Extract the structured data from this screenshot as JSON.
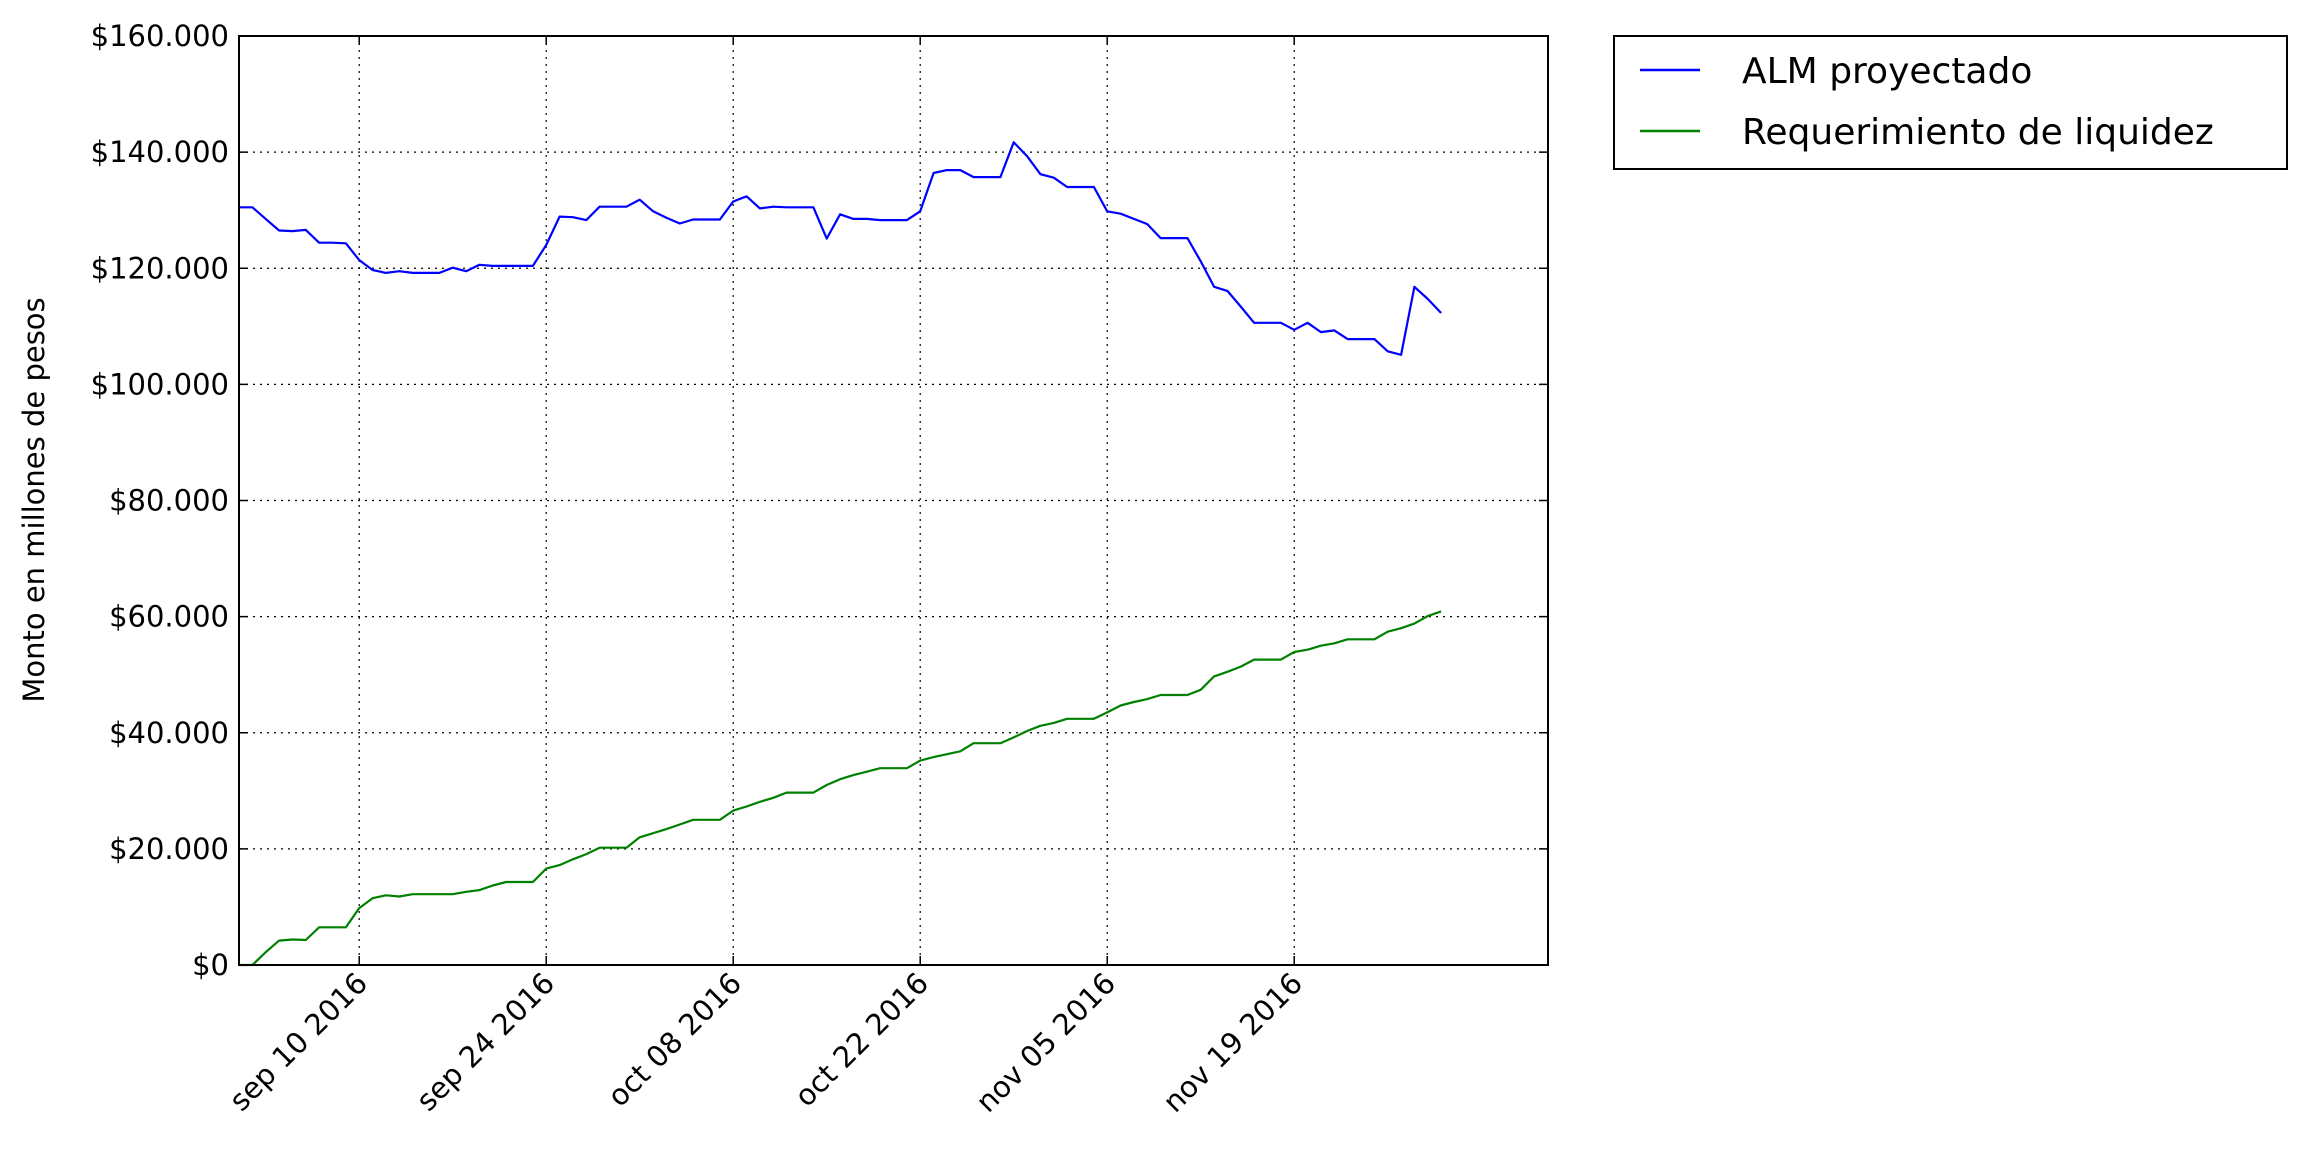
{
  "chart_data": {
    "type": "line",
    "title": "",
    "xlabel": "",
    "ylabel": "Monto en millones de pesos",
    "x_axis": {
      "kind": "date",
      "range": [
        "2016-09-01",
        "2016-12-08"
      ],
      "ticks": [
        {
          "date": "2016-09-10",
          "label": "sep 10 2016"
        },
        {
          "date": "2016-09-24",
          "label": "sep 24 2016"
        },
        {
          "date": "2016-10-08",
          "label": "oct 08 2016"
        },
        {
          "date": "2016-10-22",
          "label": "oct 22 2016"
        },
        {
          "date": "2016-11-05",
          "label": "nov 05 2016"
        },
        {
          "date": "2016-11-19",
          "label": "nov 19 2016"
        }
      ]
    },
    "y_axis": {
      "range": [
        0,
        160000
      ],
      "ticks": [
        {
          "value": 0,
          "label": "$0"
        },
        {
          "value": 20000,
          "label": "$20.000"
        },
        {
          "value": 40000,
          "label": "$40.000"
        },
        {
          "value": 60000,
          "label": "$60.000"
        },
        {
          "value": 80000,
          "label": "$80.000"
        },
        {
          "value": 100000,
          "label": "$100.000"
        },
        {
          "value": 120000,
          "label": "$120.000"
        },
        {
          "value": 140000,
          "label": "$140.000"
        },
        {
          "value": 160000,
          "label": "$160.000"
        }
      ]
    },
    "grid": true,
    "legend_position": "outside-right",
    "series": [
      {
        "name": "ALM proyectado",
        "color": "#0000ff",
        "points": [
          [
            "2016-09-01",
            130500
          ],
          [
            "2016-09-02",
            130500
          ],
          [
            "2016-09-03",
            128500
          ],
          [
            "2016-09-04",
            126500
          ],
          [
            "2016-09-05",
            126400
          ],
          [
            "2016-09-06",
            126600
          ],
          [
            "2016-09-07",
            124400
          ],
          [
            "2016-09-08",
            124400
          ],
          [
            "2016-09-09",
            124300
          ],
          [
            "2016-09-10",
            121400
          ],
          [
            "2016-09-11",
            119700
          ],
          [
            "2016-09-12",
            119200
          ],
          [
            "2016-09-13",
            119500
          ],
          [
            "2016-09-14",
            119200
          ],
          [
            "2016-09-15",
            119200
          ],
          [
            "2016-09-16",
            119200
          ],
          [
            "2016-09-17",
            120100
          ],
          [
            "2016-09-18",
            119500
          ],
          [
            "2016-09-19",
            120600
          ],
          [
            "2016-09-20",
            120400
          ],
          [
            "2016-09-21",
            120400
          ],
          [
            "2016-09-22",
            120400
          ],
          [
            "2016-09-23",
            120400
          ],
          [
            "2016-09-24",
            124000
          ],
          [
            "2016-09-25",
            128900
          ],
          [
            "2016-09-26",
            128800
          ],
          [
            "2016-09-27",
            128300
          ],
          [
            "2016-09-28",
            130600
          ],
          [
            "2016-09-29",
            130600
          ],
          [
            "2016-09-30",
            130600
          ],
          [
            "2016-10-01",
            131800
          ],
          [
            "2016-10-02",
            129800
          ],
          [
            "2016-10-03",
            128700
          ],
          [
            "2016-10-04",
            127700
          ],
          [
            "2016-10-05",
            128400
          ],
          [
            "2016-10-06",
            128400
          ],
          [
            "2016-10-07",
            128400
          ],
          [
            "2016-10-08",
            131500
          ],
          [
            "2016-10-09",
            132400
          ],
          [
            "2016-10-10",
            130300
          ],
          [
            "2016-10-11",
            130600
          ],
          [
            "2016-10-12",
            130500
          ],
          [
            "2016-10-13",
            130500
          ],
          [
            "2016-10-14",
            130500
          ],
          [
            "2016-10-15",
            125100
          ],
          [
            "2016-10-16",
            129300
          ],
          [
            "2016-10-17",
            128500
          ],
          [
            "2016-10-18",
            128500
          ],
          [
            "2016-10-19",
            128300
          ],
          [
            "2016-10-20",
            128300
          ],
          [
            "2016-10-21",
            128300
          ],
          [
            "2016-10-22",
            129800
          ],
          [
            "2016-10-23",
            136400
          ],
          [
            "2016-10-24",
            136900
          ],
          [
            "2016-10-25",
            136900
          ],
          [
            "2016-10-26",
            135700
          ],
          [
            "2016-10-27",
            135700
          ],
          [
            "2016-10-28",
            135700
          ],
          [
            "2016-10-29",
            141700
          ],
          [
            "2016-10-30",
            139300
          ],
          [
            "2016-10-31",
            136200
          ],
          [
            "2016-11-01",
            135600
          ],
          [
            "2016-11-02",
            134000
          ],
          [
            "2016-11-03",
            134000
          ],
          [
            "2016-11-04",
            134000
          ],
          [
            "2016-11-05",
            129800
          ],
          [
            "2016-11-06",
            129400
          ],
          [
            "2016-11-07",
            128500
          ],
          [
            "2016-11-08",
            127600
          ],
          [
            "2016-11-09",
            125200
          ],
          [
            "2016-11-10",
            125200
          ],
          [
            "2016-11-11",
            125200
          ],
          [
            "2016-11-12",
            121200
          ],
          [
            "2016-11-13",
            116800
          ],
          [
            "2016-11-14",
            116100
          ],
          [
            "2016-11-15",
            113400
          ],
          [
            "2016-11-16",
            110600
          ],
          [
            "2016-11-17",
            110600
          ],
          [
            "2016-11-18",
            110600
          ],
          [
            "2016-11-19",
            109400
          ],
          [
            "2016-11-20",
            110600
          ],
          [
            "2016-11-21",
            109000
          ],
          [
            "2016-11-22",
            109300
          ],
          [
            "2016-11-23",
            107800
          ],
          [
            "2016-11-24",
            107800
          ],
          [
            "2016-11-25",
            107800
          ],
          [
            "2016-11-26",
            105700
          ],
          [
            "2016-11-27",
            105100
          ],
          [
            "2016-11-28",
            116800
          ],
          [
            "2016-11-29",
            114700
          ],
          [
            "2016-11-30",
            112300
          ]
        ]
      },
      {
        "name": "Requerimiento de liquidez",
        "color": "#008000",
        "points": [
          [
            "2016-09-01",
            0
          ],
          [
            "2016-09-02",
            0
          ],
          [
            "2016-09-03",
            2200
          ],
          [
            "2016-09-04",
            4200
          ],
          [
            "2016-09-05",
            4400
          ],
          [
            "2016-09-06",
            4300
          ],
          [
            "2016-09-07",
            6500
          ],
          [
            "2016-09-08",
            6500
          ],
          [
            "2016-09-09",
            6500
          ],
          [
            "2016-09-10",
            9800
          ],
          [
            "2016-09-11",
            11500
          ],
          [
            "2016-09-12",
            12000
          ],
          [
            "2016-09-13",
            11800
          ],
          [
            "2016-09-14",
            12200
          ],
          [
            "2016-09-15",
            12200
          ],
          [
            "2016-09-16",
            12200
          ],
          [
            "2016-09-17",
            12200
          ],
          [
            "2016-09-18",
            12600
          ],
          [
            "2016-09-19",
            12900
          ],
          [
            "2016-09-20",
            13700
          ],
          [
            "2016-09-21",
            14300
          ],
          [
            "2016-09-22",
            14300
          ],
          [
            "2016-09-23",
            14300
          ],
          [
            "2016-09-24",
            16600
          ],
          [
            "2016-09-25",
            17200
          ],
          [
            "2016-09-26",
            18200
          ],
          [
            "2016-09-27",
            19100
          ],
          [
            "2016-09-28",
            20200
          ],
          [
            "2016-09-29",
            20200
          ],
          [
            "2016-09-30",
            20200
          ],
          [
            "2016-10-01",
            22000
          ],
          [
            "2016-10-02",
            22700
          ],
          [
            "2016-10-03",
            23400
          ],
          [
            "2016-10-04",
            24200
          ],
          [
            "2016-10-05",
            25000
          ],
          [
            "2016-10-06",
            25000
          ],
          [
            "2016-10-07",
            25000
          ],
          [
            "2016-10-08",
            26600
          ],
          [
            "2016-10-09",
            27300
          ],
          [
            "2016-10-10",
            28100
          ],
          [
            "2016-10-11",
            28800
          ],
          [
            "2016-10-12",
            29700
          ],
          [
            "2016-10-13",
            29700
          ],
          [
            "2016-10-14",
            29700
          ],
          [
            "2016-10-15",
            31000
          ],
          [
            "2016-10-16",
            32000
          ],
          [
            "2016-10-17",
            32700
          ],
          [
            "2016-10-18",
            33300
          ],
          [
            "2016-10-19",
            33900
          ],
          [
            "2016-10-20",
            33900
          ],
          [
            "2016-10-21",
            33900
          ],
          [
            "2016-10-22",
            35200
          ],
          [
            "2016-10-23",
            35800
          ],
          [
            "2016-10-24",
            36300
          ],
          [
            "2016-10-25",
            36800
          ],
          [
            "2016-10-26",
            38200
          ],
          [
            "2016-10-27",
            38200
          ],
          [
            "2016-10-28",
            38200
          ],
          [
            "2016-10-29",
            39200
          ],
          [
            "2016-10-30",
            40300
          ],
          [
            "2016-10-31",
            41200
          ],
          [
            "2016-11-01",
            41700
          ],
          [
            "2016-11-02",
            42400
          ],
          [
            "2016-11-03",
            42400
          ],
          [
            "2016-11-04",
            42400
          ],
          [
            "2016-11-05",
            43500
          ],
          [
            "2016-11-06",
            44700
          ],
          [
            "2016-11-07",
            45300
          ],
          [
            "2016-11-08",
            45800
          ],
          [
            "2016-11-09",
            46500
          ],
          [
            "2016-11-10",
            46500
          ],
          [
            "2016-11-11",
            46500
          ],
          [
            "2016-11-12",
            47400
          ],
          [
            "2016-11-13",
            49700
          ],
          [
            "2016-11-14",
            50500
          ],
          [
            "2016-11-15",
            51400
          ],
          [
            "2016-11-16",
            52600
          ],
          [
            "2016-11-17",
            52600
          ],
          [
            "2016-11-18",
            52600
          ],
          [
            "2016-11-19",
            53900
          ],
          [
            "2016-11-20",
            54300
          ],
          [
            "2016-11-21",
            55000
          ],
          [
            "2016-11-22",
            55400
          ],
          [
            "2016-11-23",
            56100
          ],
          [
            "2016-11-24",
            56100
          ],
          [
            "2016-11-25",
            56100
          ],
          [
            "2016-11-26",
            57400
          ],
          [
            "2016-11-27",
            58000
          ],
          [
            "2016-11-28",
            58800
          ],
          [
            "2016-11-29",
            60100
          ],
          [
            "2016-11-30",
            60900
          ]
        ]
      }
    ]
  }
}
